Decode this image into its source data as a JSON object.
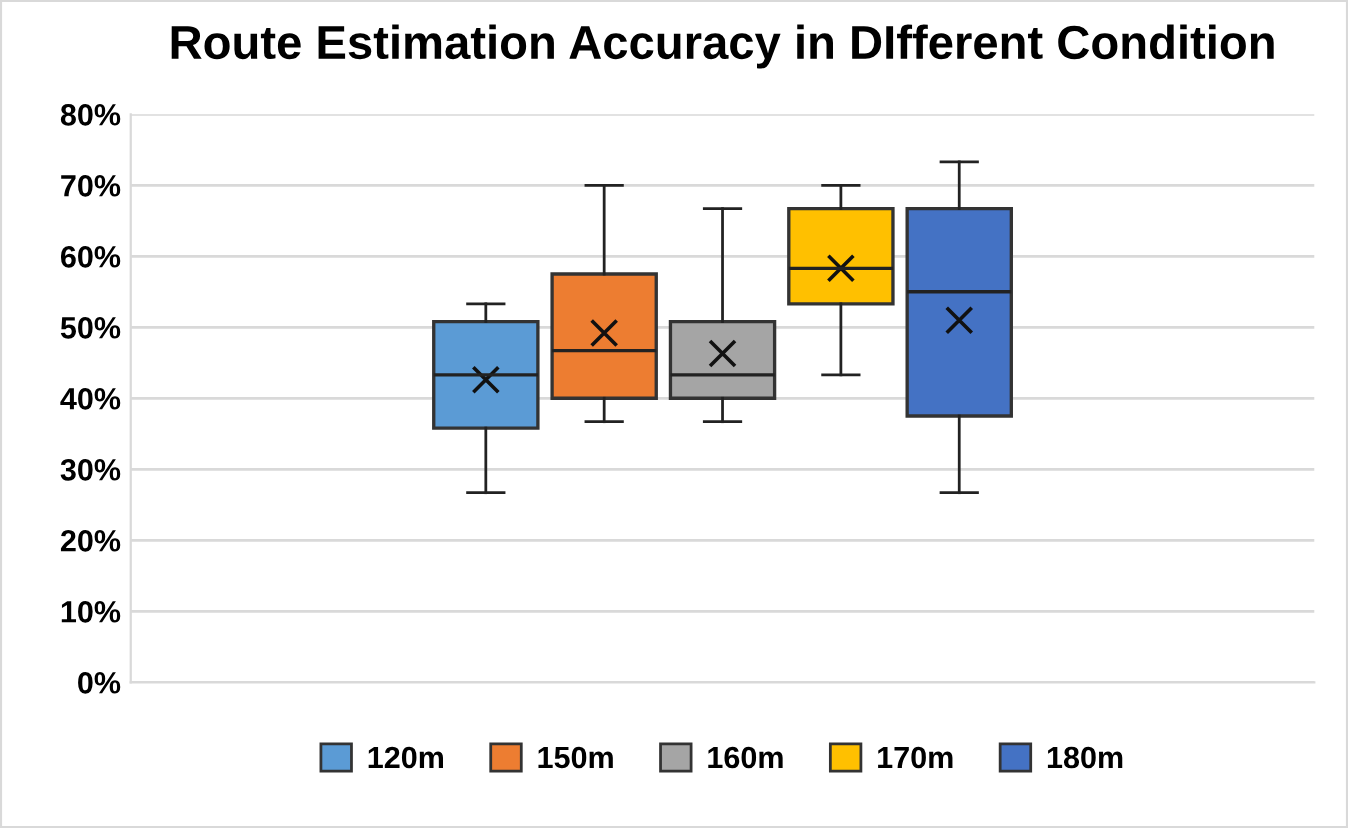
{
  "chart_data": {
    "type": "box",
    "title": "Route Estimation Accuracy in DIfferent Condition",
    "categories": [
      null
    ],
    "series": [
      {
        "name": "120m",
        "color": "#5b9bd5",
        "boxes": [
          {
            "low": 26.7,
            "q1": 35.8,
            "median": 43.3,
            "q3": 50.8,
            "high": 53.3,
            "mean": 42.6
          }
        ]
      },
      {
        "name": "150m",
        "color": "#ed7d31",
        "boxes": [
          {
            "low": 36.7,
            "q1": 40,
            "median": 46.7,
            "q3": 57.5,
            "high": 70,
            "mean": 49.2
          }
        ]
      },
      {
        "name": "160m",
        "color": "#a5a5a5",
        "boxes": [
          {
            "low": 36.7,
            "q1": 40,
            "median": 43.3,
            "q3": 50.8,
            "high": 66.7,
            "mean": 46.3
          }
        ]
      },
      {
        "name": "170m",
        "color": "#ffc000",
        "boxes": [
          {
            "low": 43.3,
            "q1": 53.3,
            "median": 58.3,
            "q3": 66.7,
            "high": 70,
            "mean": 58.3
          }
        ]
      },
      {
        "name": "180m",
        "color": "#4472c4",
        "boxes": [
          {
            "low": 26.7,
            "q1": 37.5,
            "median": 55,
            "q3": 66.7,
            "high": 73.3,
            "mean": 51
          }
        ]
      }
    ],
    "ylim": [
      0,
      80
    ],
    "yticks": [
      {
        "value": 0,
        "label": "0%"
      },
      {
        "value": 10,
        "label": "10%"
      },
      {
        "value": 20,
        "label": "20%"
      },
      {
        "value": 30,
        "label": "30%"
      },
      {
        "value": 40,
        "label": "40%"
      },
      {
        "value": 50,
        "label": "50%"
      },
      {
        "value": 60,
        "label": "60%"
      },
      {
        "value": 70,
        "label": "70%"
      },
      {
        "value": 80,
        "label": "80%"
      }
    ],
    "grid": "y",
    "legend": "bottom",
    "marker": "cross"
  }
}
